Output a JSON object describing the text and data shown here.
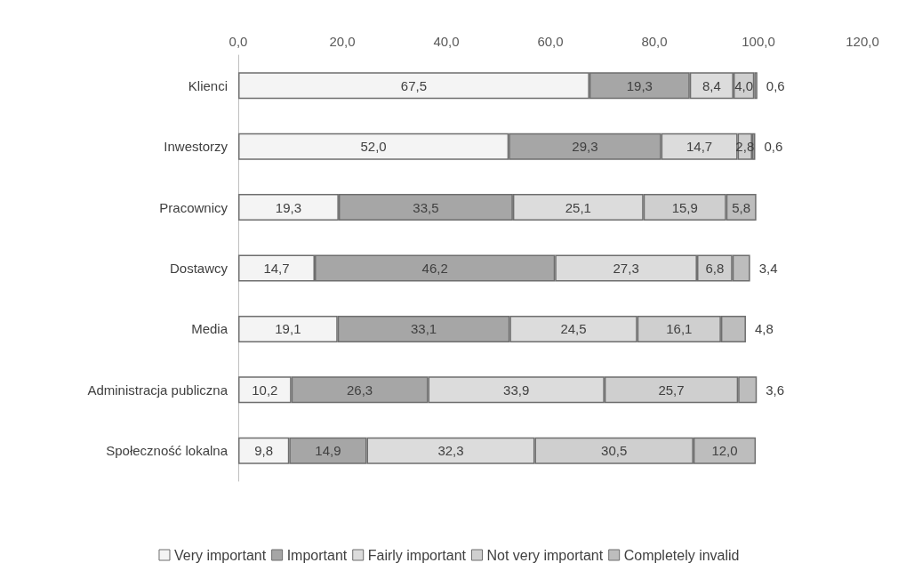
{
  "chart_data": {
    "type": "bar",
    "orientation": "horizontal",
    "stacked": true,
    "categories": [
      "Klienci",
      "Inwestorzy",
      "Pracownicy",
      "Dostawcy",
      "Media",
      "Administracja publiczna",
      "Społeczność lokalna"
    ],
    "series": [
      {
        "name": "Very important",
        "color": "#f4f4f4",
        "values": [
          67.5,
          52.0,
          19.3,
          14.7,
          19.1,
          10.2,
          9.8
        ],
        "value_labels": [
          "67,5",
          "52,0",
          "19,3",
          "14,7",
          "19,1",
          "10,2",
          "9,8"
        ]
      },
      {
        "name": "Important",
        "color": "#a6a6a6",
        "values": [
          19.3,
          29.3,
          33.5,
          46.2,
          33.1,
          26.3,
          14.9
        ],
        "value_labels": [
          "19,3",
          "29,3",
          "33,5",
          "46,2",
          "33,1",
          "26,3",
          "14,9"
        ]
      },
      {
        "name": "Fairly important",
        "color": "#dcdcdc",
        "values": [
          8.4,
          14.7,
          25.1,
          27.3,
          24.5,
          33.9,
          32.3
        ],
        "value_labels": [
          "8,4",
          "14,7",
          "25,1",
          "27,3",
          "24,5",
          "33,9",
          "32,3"
        ]
      },
      {
        "name": "Not very important",
        "color": "#cfcfcf",
        "values": [
          4.0,
          2.8,
          15.9,
          6.8,
          16.1,
          25.7,
          30.5
        ],
        "value_labels": [
          "4,0",
          "2,8",
          "15,9",
          "6,8",
          "16,1",
          "25,7",
          "30,5"
        ]
      },
      {
        "name": "Completely invalid",
        "color": "#bdbdbd",
        "values": [
          0.6,
          0.6,
          5.8,
          3.4,
          4.8,
          3.6,
          12.0
        ],
        "value_labels": [
          "0,6",
          "0,6",
          "5,8",
          "3,4",
          "4,8",
          "3,6",
          "12,0"
        ]
      }
    ],
    "xlim": [
      0,
      120
    ],
    "xticks": [
      {
        "value": 0,
        "label": "0,0"
      },
      {
        "value": 20,
        "label": "20,0"
      },
      {
        "value": 40,
        "label": "40,0"
      },
      {
        "value": 60,
        "label": "60,0"
      },
      {
        "value": 80,
        "label": "80,0"
      },
      {
        "value": 100,
        "label": "100,0"
      },
      {
        "value": 120,
        "label": "120,0"
      }
    ],
    "grid": false,
    "legend": "bottom"
  }
}
